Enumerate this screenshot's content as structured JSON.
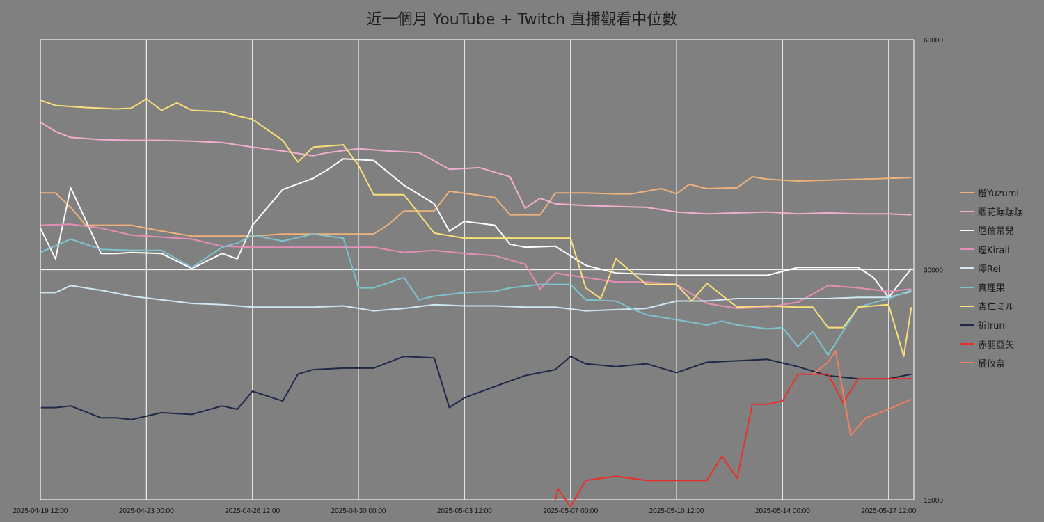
{
  "chart_data": {
    "type": "line",
    "title": "近一個月 YouTube + Twitch 直播觀看中位數",
    "y_scale": "log",
    "ylim": [
      15000,
      60000
    ],
    "y_ticks": [
      "15000",
      "30000",
      "60000"
    ],
    "y_axis_side": "right",
    "xlim": [
      "2025-04-19 12:00",
      "2025-05-18 08:00"
    ],
    "x_ticks": [
      "2025-04-19 12:00",
      "2025-04-23 00:00",
      "2025-04-26 12:00",
      "2025-04-30 00:00",
      "2025-05-03 12:00",
      "2025-05-07 00:00",
      "2025-05-10 12:00",
      "2025-05-14 00:00",
      "2025-05-17 12:00"
    ],
    "vertical_grid": true,
    "horizontal_grid": true,
    "legend_position": "right",
    "series": [
      {
        "name": "橙Yuzumi",
        "color": "#f0b27a",
        "x": [
          "2025-04-19 12:00",
          "2025-04-20 00:00",
          "2025-04-20 12:00",
          "2025-04-21 00:00",
          "2025-04-22 12:00",
          "2025-04-23 12:00",
          "2025-04-24 12:00",
          "2025-04-25 12:00",
          "2025-04-26 12:00",
          "2025-04-27 12:00",
          "2025-04-28 12:00",
          "2025-04-29 12:00",
          "2025-04-30 12:00",
          "2025-05-01 00:00",
          "2025-05-01 12:00",
          "2025-05-02 12:00",
          "2025-05-03 00:00",
          "2025-05-04 12:00",
          "2025-05-05 00:00",
          "2025-05-06 00:00",
          "2025-05-06 12:00",
          "2025-05-07 12:00",
          "2025-05-08 12:00",
          "2025-05-09 00:00",
          "2025-05-10 00:00",
          "2025-05-10 12:00",
          "2025-05-10 22:00",
          "2025-05-11 12:00",
          "2025-05-12 12:00",
          "2025-05-13 00:00",
          "2025-05-13 12:00",
          "2025-05-14 12:00",
          "2025-05-15 12:00",
          "2025-05-16 12:00",
          "2025-05-17 12:00",
          "2025-05-18 06:00"
        ],
        "values": [
          37800,
          37800,
          36200,
          34300,
          34300,
          33700,
          33200,
          33200,
          33200,
          33400,
          33400,
          33400,
          33400,
          34400,
          35800,
          35800,
          38000,
          37300,
          35400,
          35400,
          37800,
          37800,
          37700,
          37700,
          38300,
          37700,
          38800,
          38300,
          38400,
          39700,
          39400,
          39200,
          39300,
          39400,
          39500,
          39600
        ]
      },
      {
        "name": "烟花蹦蹦蹦",
        "color": "#f4aed0",
        "x": [
          "2025-04-19 12:00",
          "2025-04-20 00:00",
          "2025-04-20 12:00",
          "2025-04-21 12:00",
          "2025-04-22 12:00",
          "2025-04-23 12:00",
          "2025-04-24 12:00",
          "2025-04-25 12:00",
          "2025-04-26 12:00",
          "2025-04-27 12:00",
          "2025-04-28 12:00",
          "2025-04-29 00:00",
          "2025-04-30 00:00",
          "2025-05-01 00:00",
          "2025-05-02 00:00",
          "2025-05-03 00:00",
          "2025-05-04 00:00",
          "2025-05-05 00:00",
          "2025-05-05 12:00",
          "2025-05-06 00:00",
          "2025-05-06 12:00",
          "2025-05-07 12:00",
          "2025-05-08 12:00",
          "2025-05-09 12:00",
          "2025-05-10 12:00",
          "2025-05-11 12:00",
          "2025-05-12 12:00",
          "2025-05-13 12:00",
          "2025-05-14 12:00",
          "2025-05-15 12:00",
          "2025-05-16 12:00",
          "2025-05-17 12:00",
          "2025-05-18 06:00"
        ],
        "values": [
          46800,
          45500,
          44700,
          44400,
          44300,
          44300,
          44200,
          44000,
          43400,
          42900,
          42300,
          42700,
          43200,
          42900,
          42700,
          40600,
          40800,
          39700,
          36100,
          37200,
          36600,
          36400,
          36300,
          36200,
          35700,
          35500,
          35600,
          35700,
          35500,
          35600,
          35500,
          35500,
          35400
        ]
      },
      {
        "name": "厄倫蒂兒",
        "color": "#ffffff",
        "x": [
          "2025-04-19 12:00",
          "2025-04-20 00:00",
          "2025-04-20 12:00",
          "2025-04-21 00:00",
          "2025-04-21 12:00",
          "2025-04-22 00:00",
          "2025-04-22 12:00",
          "2025-04-23 12:00",
          "2025-04-24 12:00",
          "2025-04-25 12:00",
          "2025-04-26 00:00",
          "2025-04-26 12:00",
          "2025-04-27 12:00",
          "2025-04-28 12:00",
          "2025-04-29 00:00",
          "2025-04-29 12:00",
          "2025-04-30 12:00",
          "2025-05-01 12:00",
          "2025-05-02 12:00",
          "2025-05-03 00:00",
          "2025-05-03 12:00",
          "2025-05-04 12:00",
          "2025-05-05 00:00",
          "2025-05-05 12:00",
          "2025-05-06 12:00",
          "2025-05-07 12:00",
          "2025-05-08 12:00",
          "2025-05-09 12:00",
          "2025-05-10 12:00",
          "2025-05-11 12:00",
          "2025-05-12 12:00",
          "2025-05-13 12:00",
          "2025-05-14 12:00",
          "2025-05-15 12:00",
          "2025-05-16 12:00",
          "2025-05-17 00:00",
          "2025-05-17 12:00",
          "2025-05-18 06:00"
        ],
        "values": [
          34000,
          31000,
          38400,
          34800,
          31500,
          31500,
          31600,
          31500,
          30100,
          31500,
          31000,
          34300,
          38200,
          39500,
          40600,
          41900,
          41700,
          38700,
          36600,
          33700,
          34700,
          34300,
          32400,
          32100,
          32200,
          30400,
          29700,
          29600,
          29500,
          29500,
          29500,
          29500,
          30200,
          30200,
          30200,
          29300,
          27600,
          30100
        ]
      },
      {
        "name": "煌Kirali",
        "color": "#e58fb6",
        "x": [
          "2025-04-19 12:00",
          "2025-04-20 12:00",
          "2025-04-21 12:00",
          "2025-04-22 12:00",
          "2025-04-23 12:00",
          "2025-04-24 12:00",
          "2025-04-25 12:00",
          "2025-04-26 12:00",
          "2025-04-27 12:00",
          "2025-04-28 12:00",
          "2025-04-29 12:00",
          "2025-04-30 12:00",
          "2025-05-01 12:00",
          "2025-05-02 12:00",
          "2025-05-03 12:00",
          "2025-05-04 12:00",
          "2025-05-05 12:00",
          "2025-05-06 00:00",
          "2025-05-06 12:00",
          "2025-05-07 12:00",
          "2025-05-08 12:00",
          "2025-05-09 12:00",
          "2025-05-10 12:00",
          "2025-05-11 12:00",
          "2025-05-12 12:00",
          "2025-05-13 12:00",
          "2025-05-14 12:00",
          "2025-05-15 12:00",
          "2025-05-16 12:00",
          "2025-05-17 12:00",
          "2025-05-18 06:00"
        ],
        "values": [
          34300,
          34400,
          34000,
          33300,
          33100,
          32900,
          32200,
          32100,
          32100,
          32100,
          32100,
          32100,
          31600,
          31800,
          31500,
          31300,
          30500,
          28300,
          29700,
          29300,
          28900,
          28900,
          28700,
          27100,
          26700,
          26800,
          27200,
          28600,
          28400,
          28100,
          28300
        ]
      },
      {
        "name": "澪Rei",
        "color": "#cfe8f4",
        "x": [
          "2025-04-19 12:00",
          "2025-04-20 00:00",
          "2025-04-20 12:00",
          "2025-04-21 12:00",
          "2025-04-22 12:00",
          "2025-04-23 12:00",
          "2025-04-24 12:00",
          "2025-04-25 12:00",
          "2025-04-26 12:00",
          "2025-04-27 12:00",
          "2025-04-28 12:00",
          "2025-04-29 12:00",
          "2025-04-30 12:00",
          "2025-05-01 12:00",
          "2025-05-02 12:00",
          "2025-05-03 12:00",
          "2025-05-04 12:00",
          "2025-05-05 12:00",
          "2025-05-06 12:00",
          "2025-05-07 12:00",
          "2025-05-08 12:00",
          "2025-05-09 12:00",
          "2025-05-10 12:00",
          "2025-05-11 12:00",
          "2025-05-12 12:00",
          "2025-05-13 12:00",
          "2025-05-14 12:00",
          "2025-05-15 12:00",
          "2025-05-16 12:00",
          "2025-05-17 12:00",
          "2025-05-18 06:00"
        ],
        "values": [
          28000,
          28000,
          28600,
          28200,
          27700,
          27400,
          27100,
          27000,
          26800,
          26800,
          26800,
          26900,
          26500,
          26700,
          27000,
          26900,
          26900,
          26800,
          26800,
          26500,
          26600,
          26700,
          27300,
          27300,
          27500,
          27500,
          27500,
          27500,
          27600,
          27600,
          28100
        ]
      },
      {
        "name": "真理果",
        "color": "#7ec4cf",
        "x": [
          "2025-04-19 12:00",
          "2025-04-20 12:00",
          "2025-04-21 12:00",
          "2025-04-22 12:00",
          "2025-04-23 12:00",
          "2025-04-24 12:00",
          "2025-04-25 12:00",
          "2025-04-26 00:00",
          "2025-04-26 12:00",
          "2025-04-27 12:00",
          "2025-04-28 12:00",
          "2025-04-29 12:00",
          "2025-04-30 00:00",
          "2025-04-30 12:00",
          "2025-05-01 12:00",
          "2025-05-02 00:00",
          "2025-05-02 12:00",
          "2025-05-03 12:00",
          "2025-05-04 12:00",
          "2025-05-05 00:00",
          "2025-05-06 00:00",
          "2025-05-07 00:00",
          "2025-05-07 12:00",
          "2025-05-08 12:00",
          "2025-05-09 00:00",
          "2025-05-09 12:00",
          "2025-05-10 12:00",
          "2025-05-11 12:00",
          "2025-05-12 00:00",
          "2025-05-12 12:00",
          "2025-05-13 12:00",
          "2025-05-14 00:00",
          "2025-05-14 12:00",
          "2025-05-15 00:00",
          "2025-05-15 12:00",
          "2025-05-16 12:00",
          "2025-05-17 12:00",
          "2025-05-18 06:00"
        ],
        "values": [
          31600,
          32900,
          31900,
          31800,
          31800,
          30200,
          32100,
          32500,
          33300,
          32700,
          33400,
          33000,
          28400,
          28400,
          29300,
          27400,
          27700,
          28000,
          28100,
          28400,
          28700,
          28700,
          27400,
          27300,
          26700,
          26200,
          25800,
          25400,
          25700,
          25400,
          25100,
          25200,
          23800,
          24900,
          23200,
          26800,
          27500,
          28200
        ]
      },
      {
        "name": "杏仁ミル",
        "color": "#f9e07a",
        "x": [
          "2025-04-19 12:00",
          "2025-04-20 00:00",
          "2025-04-21 00:00",
          "2025-04-22 00:00",
          "2025-04-22 12:00",
          "2025-04-23 00:00",
          "2025-04-23 12:00",
          "2025-04-24 00:00",
          "2025-04-24 12:00",
          "2025-04-25 12:00",
          "2025-04-26 00:00",
          "2025-04-26 12:00",
          "2025-04-27 12:00",
          "2025-04-28 00:00",
          "2025-04-28 12:00",
          "2025-04-29 12:00",
          "2025-04-30 00:00",
          "2025-04-30 12:00",
          "2025-05-01 12:00",
          "2025-05-02 12:00",
          "2025-05-03 12:00",
          "2025-05-04 12:00",
          "2025-05-05 12:00",
          "2025-05-06 12:00",
          "2025-05-07 00:00",
          "2025-05-07 12:00",
          "2025-05-08 00:00",
          "2025-05-08 12:00",
          "2025-05-09 12:00",
          "2025-05-10 12:00",
          "2025-05-11 00:00",
          "2025-05-11 12:00",
          "2025-05-12 12:00",
          "2025-05-13 12:00",
          "2025-05-14 12:00",
          "2025-05-15 00:00",
          "2025-05-15 12:00",
          "2025-05-16 00:00",
          "2025-05-16 12:00",
          "2025-05-17 12:00",
          "2025-05-18 00:00",
          "2025-05-18 06:00"
        ],
        "values": [
          50000,
          49200,
          48900,
          48700,
          48800,
          50200,
          48500,
          49600,
          48500,
          48300,
          47700,
          47200,
          44300,
          41500,
          43400,
          43700,
          41100,
          37600,
          37600,
          33500,
          33000,
          33000,
          33000,
          33000,
          33000,
          28400,
          27500,
          31000,
          28700,
          28700,
          27300,
          28800,
          26800,
          26900,
          26800,
          26800,
          25200,
          25200,
          26800,
          27000,
          23100,
          26800
        ]
      },
      {
        "name": "祈Iruni",
        "color": "#1f2849",
        "x": [
          "2025-04-19 12:00",
          "2025-04-20 00:00",
          "2025-04-20 12:00",
          "2025-04-21 12:00",
          "2025-04-22 00:00",
          "2025-04-22 12:00",
          "2025-04-23 12:00",
          "2025-04-24 12:00",
          "2025-04-25 12:00",
          "2025-04-26 00:00",
          "2025-04-26 12:00",
          "2025-04-27 12:00",
          "2025-04-28 00:00",
          "2025-04-28 12:00",
          "2025-04-29 12:00",
          "2025-04-30 12:00",
          "2025-05-01 12:00",
          "2025-05-02 12:00",
          "2025-05-03 00:00",
          "2025-05-03 12:00",
          "2025-05-04 12:00",
          "2025-05-05 12:00",
          "2025-05-06 12:00",
          "2025-05-07 00:00",
          "2025-05-07 12:00",
          "2025-05-08 12:00",
          "2025-05-09 12:00",
          "2025-05-10 12:00",
          "2025-05-11 12:00",
          "2025-05-12 12:00",
          "2025-05-13 12:00",
          "2025-05-14 12:00",
          "2025-05-15 12:00",
          "2025-05-16 12:00",
          "2025-05-17 12:00",
          "2025-05-18 06:00"
        ],
        "values": [
          19800,
          19800,
          19900,
          19200,
          19200,
          19100,
          19500,
          19400,
          19900,
          19700,
          20800,
          20200,
          21900,
          22200,
          22300,
          22300,
          23100,
          23000,
          19800,
          20400,
          21100,
          21800,
          22200,
          23100,
          22600,
          22400,
          22600,
          22000,
          22700,
          22800,
          22900,
          22400,
          21800,
          21600,
          21600,
          21900
        ]
      },
      {
        "name": "赤羽亞矢",
        "color": "#e8302a",
        "x": [
          "2025-05-06 12:00",
          "2025-05-06 14:00",
          "2025-05-07 00:00",
          "2025-05-07 12:00",
          "2025-05-08 12:00",
          "2025-05-09 12:00",
          "2025-05-10 12:00",
          "2025-05-11 12:00",
          "2025-05-12 00:00",
          "2025-05-12 12:00",
          "2025-05-13 00:00",
          "2025-05-13 12:00",
          "2025-05-14 00:00",
          "2025-05-14 12:00",
          "2025-05-15 00:00",
          "2025-05-15 12:00",
          "2025-05-16 00:00",
          "2025-05-16 12:00",
          "2025-05-17 12:00",
          "2025-05-18 06:00"
        ],
        "values": [
          15000,
          15500,
          14700,
          15900,
          16100,
          15900,
          15900,
          15900,
          17100,
          16000,
          20000,
          20000,
          20200,
          21900,
          21900,
          21900,
          20100,
          21600,
          21600,
          21600
        ]
      },
      {
        "name": "橘攸奈",
        "color": "#f08060",
        "x": [
          "2025-05-15 00:00",
          "2025-05-15 12:00",
          "2025-05-15 18:00",
          "2025-05-16 06:00",
          "2025-05-16 18:00",
          "2025-05-17 12:00",
          "2025-05-18 06:00"
        ],
        "values": [
          21900,
          22700,
          23500,
          18200,
          19200,
          19700,
          20300
        ]
      }
    ]
  }
}
